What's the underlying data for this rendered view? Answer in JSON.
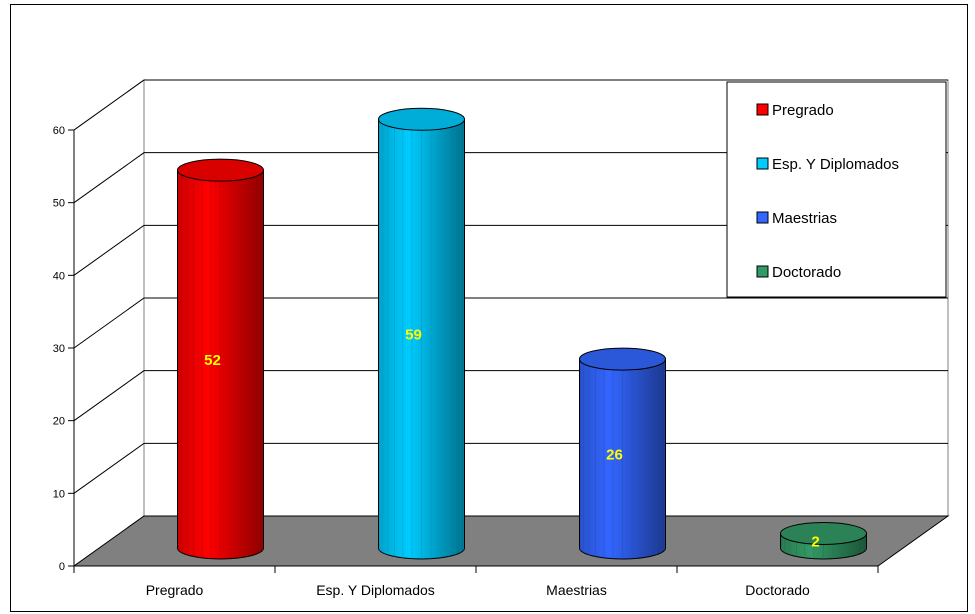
{
  "chart_data": {
    "type": "bar",
    "style": "3d-cylinder",
    "categories": [
      "Pregrado",
      "Esp. Y Diplomados",
      "Maestrias",
      "Doctorado"
    ],
    "values": [
      52,
      59,
      26,
      2
    ],
    "colors": [
      "#ff0000",
      "#00ccff",
      "#3366ff",
      "#339966"
    ],
    "data_label_color": "#ffff00",
    "ylim": [
      0,
      60
    ],
    "yticks": [
      0,
      10,
      20,
      30,
      40,
      50,
      60
    ],
    "grid": true,
    "floor_color": "#808080",
    "legend": {
      "placement": "top-right",
      "entries": [
        "Pregrado",
        "Esp. Y Diplomados",
        "Maestrias",
        "Doctorado"
      ]
    },
    "title": "",
    "xlabel": "",
    "ylabel": ""
  }
}
